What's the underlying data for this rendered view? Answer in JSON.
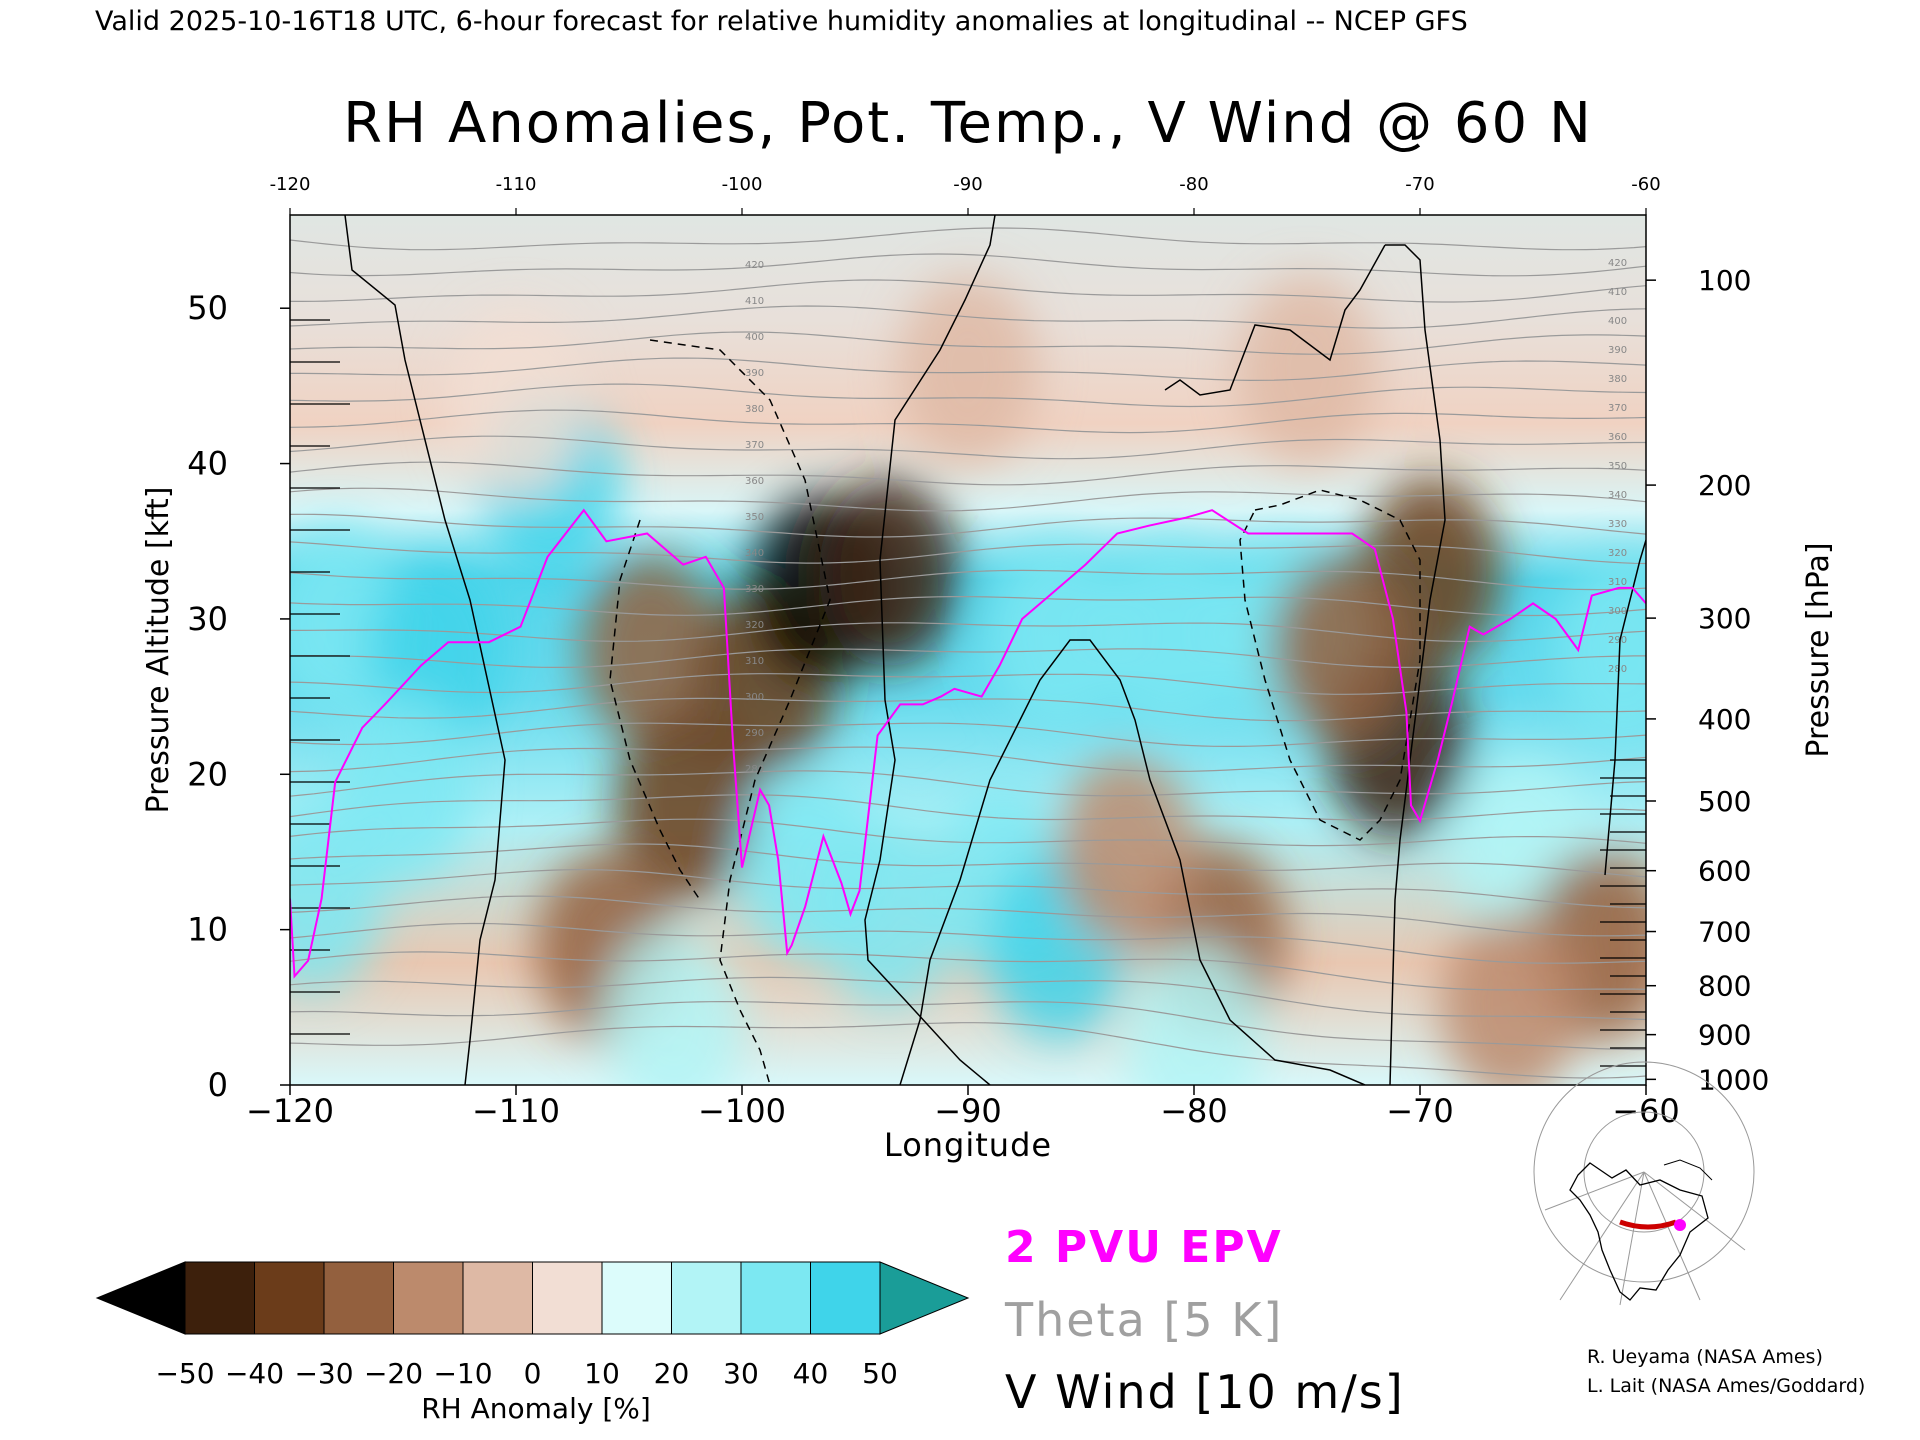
{
  "header": {
    "valid_line": "Valid 2025-10-16T18 UTC, 6-hour forecast for relative humidity anomalies at longitudinal -- NCEP GFS"
  },
  "chart_data": {
    "type": "heatmap",
    "title": "RH Anomalies, Pot. Temp., V Wind @ 60 N",
    "xlabel": "Longitude",
    "ylabel_left": "Pressure Altitude [kft]",
    "ylabel_right": "Pressure [hPa]",
    "xlim": [
      -120,
      -60
    ],
    "ylim": [
      0,
      56
    ],
    "x_ticks": [
      -120,
      -110,
      -100,
      -90,
      -80,
      -70,
      -60
    ],
    "x_tick_labels": [
      "−120",
      "−110",
      "−100",
      "−90",
      "−80",
      "−70",
      "−60"
    ],
    "top_tick_labels": [
      "-120",
      "-110",
      "-100",
      "-90",
      "-80",
      "-70",
      "-60"
    ],
    "y_ticks": [
      0,
      10,
      20,
      30,
      40,
      50
    ],
    "pressure_ticks": [
      {
        "hPa": 100,
        "label": "100"
      },
      {
        "hPa": 200,
        "label": "200"
      },
      {
        "hPa": 300,
        "label": "300"
      },
      {
        "hPa": 400,
        "label": "400"
      },
      {
        "hPa": 500,
        "label": "500"
      },
      {
        "hPa": 600,
        "label": "600"
      },
      {
        "hPa": 700,
        "label": "700"
      },
      {
        "hPa": 800,
        "label": "800"
      },
      {
        "hPa": 900,
        "label": "900"
      },
      {
        "hPa": 1000,
        "label": "1000"
      }
    ],
    "colorbar": {
      "label": "RH Anomaly [%]",
      "ticks": [
        "−50",
        "−40",
        "−30",
        "−20",
        "−10",
        "0",
        "10",
        "20",
        "30",
        "40",
        "50"
      ],
      "colors": [
        "#000000",
        "#3d200c",
        "#6b3c1a",
        "#93603e",
        "#bc8a6c",
        "#deb9a5",
        "#f2ded4",
        "#dcfcfb",
        "#b2f4f6",
        "#7ce8f2",
        "#3fd4ea",
        "#1bb0d2",
        "#0d8eb2",
        "#1a9d98"
      ]
    },
    "theta_labels": [
      "420",
      "410",
      "400",
      "390",
      "380",
      "370",
      "360",
      "350",
      "340",
      "330",
      "320",
      "310",
      "300",
      "290",
      "280"
    ],
    "legend": {
      "epv": "2 PVU EPV",
      "theta": "Theta [5 K]",
      "vwind": "V Wind [10 m/s]",
      "epv_color": "#ff00ff",
      "theta_color": "#a0a0a0",
      "vwind_color": "#000000"
    },
    "rh_anomaly_blobs": [
      {
        "lon": -118,
        "kft": 30,
        "value": 35
      },
      {
        "lon": -113.5,
        "kft": 28,
        "value": 45
      },
      {
        "lon": -108.5,
        "kft": 38.5,
        "value": 40
      },
      {
        "lon": -115,
        "kft": 19,
        "value": 30
      },
      {
        "lon": -119,
        "kft": 12,
        "value": 35
      },
      {
        "lon": -104,
        "kft": 28,
        "value": -22
      },
      {
        "lon": -102.5,
        "kft": 18,
        "value": -40
      },
      {
        "lon": -99,
        "kft": 26,
        "value": -35
      },
      {
        "lon": -96.5,
        "kft": 32,
        "value": -55
      },
      {
        "lon": -93.5,
        "kft": 33,
        "value": -48
      },
      {
        "lon": -97,
        "kft": 14,
        "value": 30
      },
      {
        "lon": -93.5,
        "kft": 11,
        "value": 38
      },
      {
        "lon": -88.5,
        "kft": 13,
        "value": 33
      },
      {
        "lon": -86,
        "kft": 9,
        "value": 40
      },
      {
        "lon": -86,
        "kft": 29,
        "value": 30
      },
      {
        "lon": -81,
        "kft": 29,
        "value": 32
      },
      {
        "lon": -76,
        "kft": 29,
        "value": 30
      },
      {
        "lon": -79,
        "kft": 9.5,
        "value": -30
      },
      {
        "lon": -83,
        "kft": 15,
        "value": -20
      },
      {
        "lon": -71,
        "kft": 22,
        "value": -48
      },
      {
        "lon": -69.5,
        "kft": 33,
        "value": -40
      },
      {
        "lon": -73.5,
        "kft": 28,
        "value": -25
      },
      {
        "lon": -65.5,
        "kft": 15,
        "value": 25
      },
      {
        "lon": -61,
        "kft": 28,
        "value": 32
      },
      {
        "lon": -62,
        "kft": 9,
        "value": -22
      },
      {
        "lon": -66,
        "kft": 5,
        "value": -20
      },
      {
        "lon": -106,
        "kft": 9,
        "value": -25
      },
      {
        "lon": -103,
        "kft": 4,
        "value": 28
      },
      {
        "lon": -80,
        "kft": 3,
        "value": 25
      },
      {
        "lon": -110,
        "kft": 44,
        "value": 5
      },
      {
        "lon": -90,
        "kft": 46,
        "value": -8
      },
      {
        "lon": -75,
        "kft": 46,
        "value": -8
      }
    ],
    "epv_2pvu_line": {
      "lon": [
        -120,
        -119.8,
        -119.2,
        -118.6,
        -118,
        -116.8,
        -115.8,
        -114.2,
        -113,
        -111.2,
        -109.8,
        -108.6,
        -107,
        -106,
        -104.2,
        -102.6,
        -101.6,
        -100.8,
        -100.4,
        -100,
        -99.6,
        -99.2,
        -98.8,
        -98.4,
        -98,
        -97.8,
        -97.2,
        -96.4,
        -95.6,
        -95.2,
        -94.8,
        -94,
        -93,
        -92,
        -91.2,
        -90.6,
        -89.4,
        -88.6,
        -87.6,
        -86.4,
        -84.8,
        -83.4,
        -82,
        -80.4,
        -79.2,
        -77.6,
        -76,
        -74.4,
        -73,
        -72,
        -71.2,
        -70.8,
        -70.6,
        -70.4,
        -70,
        -69.2,
        -68.6,
        -67.8,
        -67.2,
        -66,
        -65,
        -64,
        -63,
        -62.4,
        -61.2,
        -60.6,
        -60
      ],
      "kft": [
        12,
        7,
        8,
        12,
        19.5,
        23,
        24.5,
        27,
        28.5,
        28.5,
        29.5,
        34,
        37,
        35,
        35.5,
        33.5,
        34,
        32,
        22,
        14,
        16.5,
        19,
        18,
        14.5,
        8.5,
        9,
        11.5,
        16,
        13,
        11,
        12.5,
        22.5,
        24.5,
        24.5,
        25,
        25.5,
        25,
        27,
        30,
        31.5,
        33.5,
        35.5,
        36,
        36.5,
        37,
        35.5,
        35.5,
        35.5,
        35.5,
        34.5,
        30,
        26,
        24,
        18,
        17,
        21,
        24.5,
        29.5,
        29,
        30,
        31,
        30,
        28,
        31.5,
        32,
        32,
        31
      ]
    },
    "vwind_label": "0, ±10 m/s contours"
  },
  "credits": {
    "line1": "R. Ueyama (NASA Ames)",
    "line2": "L. Lait (NASA Ames/Goddard)"
  }
}
